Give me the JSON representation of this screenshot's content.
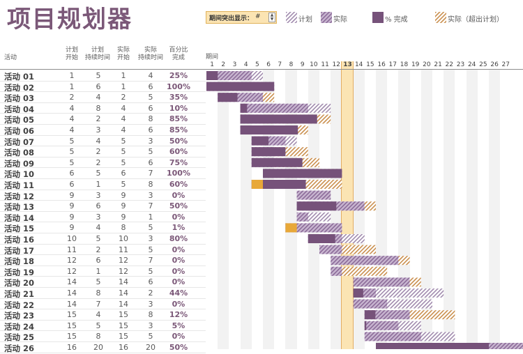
{
  "title": "项目规划器",
  "highlight": {
    "label": "期间突出显示：",
    "value": "#",
    "period": 13
  },
  "legend": [
    {
      "label": "计划",
      "kind": "plan"
    },
    {
      "label": "实际",
      "kind": "actual"
    },
    {
      "label": "% 完成",
      "kind": "percent"
    },
    {
      "label": "实际（超出计划）",
      "kind": "over"
    }
  ],
  "columns": {
    "activity": "活动",
    "plan_start": "计划\n开始",
    "plan_duration": "计划\n持续时间",
    "actual_start": "实际\n开始",
    "actual_duration": "实际\n持续时间",
    "percent": "百分比\n完成",
    "period": "期间"
  },
  "days": [
    1,
    2,
    3,
    4,
    5,
    6,
    7,
    8,
    9,
    10,
    11,
    12,
    13,
    14,
    15,
    16,
    17,
    18,
    19,
    20,
    21,
    22,
    23,
    24,
    25,
    26,
    27
  ],
  "colors": {
    "plan": "#b7a6bf",
    "actual": "#a98bb4",
    "percent": "#76527a",
    "over": "#d7a05a",
    "orange": "#e8a838",
    "highlight": "#fbe4b3"
  },
  "rows": [
    {
      "name": "活动 01",
      "ps": 1,
      "pd": 5,
      "as": 1,
      "ad": 4,
      "pct": "25%"
    },
    {
      "name": "活动 02",
      "ps": 1,
      "pd": 6,
      "as": 1,
      "ad": 6,
      "pct": "100%"
    },
    {
      "name": "活动 03",
      "ps": 2,
      "pd": 4,
      "as": 2,
      "ad": 5,
      "pct": "35%"
    },
    {
      "name": "活动 04",
      "ps": 4,
      "pd": 8,
      "as": 4,
      "ad": 6,
      "pct": "10%"
    },
    {
      "name": "活动 05",
      "ps": 4,
      "pd": 2,
      "as": 4,
      "ad": 8,
      "pct": "85%"
    },
    {
      "name": "活动 06",
      "ps": 4,
      "pd": 3,
      "as": 4,
      "ad": 6,
      "pct": "85%"
    },
    {
      "name": "活动 07",
      "ps": 5,
      "pd": 4,
      "as": 5,
      "ad": 3,
      "pct": "50%"
    },
    {
      "name": "活动 08",
      "ps": 5,
      "pd": 2,
      "as": 5,
      "ad": 5,
      "pct": "60%"
    },
    {
      "name": "活动 09",
      "ps": 5,
      "pd": 2,
      "as": 5,
      "ad": 6,
      "pct": "75%"
    },
    {
      "name": "活动 10",
      "ps": 6,
      "pd": 5,
      "as": 6,
      "ad": 7,
      "pct": "100%"
    },
    {
      "name": "活动 11",
      "ps": 6,
      "pd": 1,
      "as": 5,
      "ad": 8,
      "pct": "60%"
    },
    {
      "name": "活动 12",
      "ps": 9,
      "pd": 3,
      "as": 9,
      "ad": 3,
      "pct": "0%"
    },
    {
      "name": "活动 13",
      "ps": 9,
      "pd": 6,
      "as": 9,
      "ad": 7,
      "pct": "50%"
    },
    {
      "name": "活动 14",
      "ps": 9,
      "pd": 3,
      "as": 9,
      "ad": 1,
      "pct": "0%"
    },
    {
      "name": "活动 15",
      "ps": 9,
      "pd": 4,
      "as": 8,
      "ad": 5,
      "pct": "1%"
    },
    {
      "name": "活动 16",
      "ps": 10,
      "pd": 5,
      "as": 10,
      "ad": 3,
      "pct": "80%"
    },
    {
      "name": "活动 17",
      "ps": 11,
      "pd": 2,
      "as": 11,
      "ad": 5,
      "pct": "0%"
    },
    {
      "name": "活动 18",
      "ps": 12,
      "pd": 6,
      "as": 12,
      "ad": 7,
      "pct": "0%"
    },
    {
      "name": "活动 19",
      "ps": 12,
      "pd": 1,
      "as": 12,
      "ad": 5,
      "pct": "0%"
    },
    {
      "name": "活动 20",
      "ps": 14,
      "pd": 5,
      "as": 14,
      "ad": 6,
      "pct": "0%"
    },
    {
      "name": "活动 21",
      "ps": 14,
      "pd": 8,
      "as": 14,
      "ad": 2,
      "pct": "44%"
    },
    {
      "name": "活动 22",
      "ps": 14,
      "pd": 7,
      "as": 14,
      "ad": 3,
      "pct": "0%"
    },
    {
      "name": "活动 23",
      "ps": 15,
      "pd": 4,
      "as": 15,
      "ad": 8,
      "pct": "12%"
    },
    {
      "name": "活动 24",
      "ps": 15,
      "pd": 5,
      "as": 15,
      "ad": 3,
      "pct": "5%"
    },
    {
      "name": "活动 25",
      "ps": 15,
      "pd": 8,
      "as": 15,
      "ad": 5,
      "pct": "0%"
    },
    {
      "name": "活动 26",
      "ps": 16,
      "pd": 20,
      "as": 16,
      "ad": 20,
      "pct": "50%"
    }
  ]
}
